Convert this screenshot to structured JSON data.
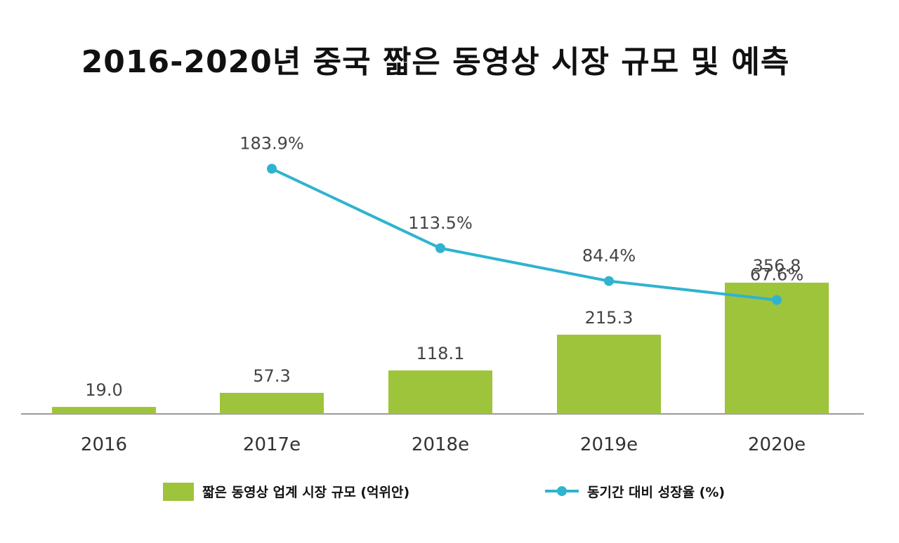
{
  "chart_data": {
    "type": "bar",
    "title": "2016-2020년 중국 짧은 동영상 시장 규모 및 예측",
    "categories": [
      "2016",
      "2017e",
      "2018e",
      "2019e",
      "2020e"
    ],
    "series": [
      {
        "name": "짧은 동영상 업계 시장 규모 (억위안)",
        "kind": "bar",
        "color": "#9ec43b",
        "values": [
          19.0,
          57.3,
          118.1,
          215.3,
          356.8
        ],
        "labels": [
          "19.0",
          "57.3",
          "118.1",
          "215.3",
          "356.8"
        ]
      },
      {
        "name": "동기간 대비 성장율 (%)",
        "kind": "line",
        "color": "#2fb3cf",
        "values": [
          null,
          183.9,
          113.5,
          84.4,
          67.6
        ],
        "labels": [
          "",
          "183.9%",
          "113.5%",
          "84.4%",
          "67.6%"
        ]
      }
    ],
    "xlabel": "",
    "ylabel": "",
    "bar_ylim": [
      0,
      360
    ],
    "line_ylim": [
      0,
      200
    ],
    "grid": false,
    "legend_position": "bottom"
  },
  "colors": {
    "bar": "#9ec43b",
    "line": "#2fb3cf",
    "axis": "#9a9a9a"
  }
}
